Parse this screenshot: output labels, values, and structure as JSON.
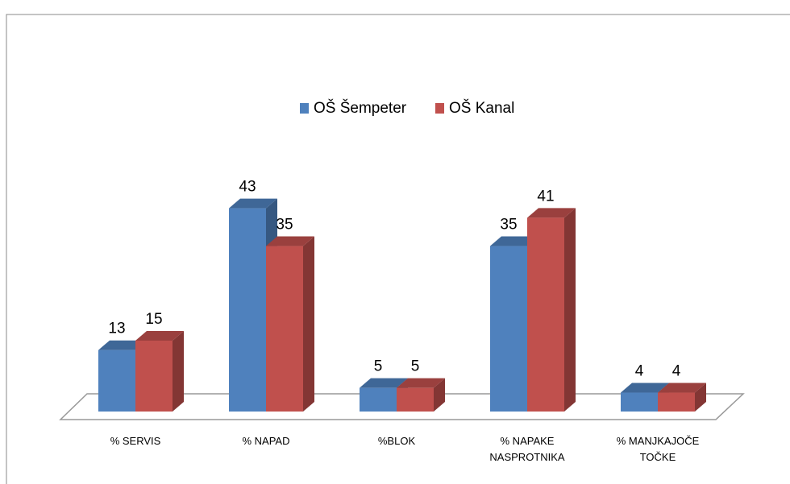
{
  "chart_data": {
    "type": "bar3d",
    "categories": [
      "% SERVIS",
      "% NAPAD",
      "%BLOK",
      "% NAPAKE NASPROTNIKA",
      "% MANJKAJOČE TOČKE"
    ],
    "series": [
      {
        "name": "OŠ Šempeter",
        "color": "#4f81bd",
        "values": [
          13,
          43,
          5,
          35,
          4
        ]
      },
      {
        "name": "OŠ Kanal",
        "color": "#c0504d",
        "values": [
          15,
          35,
          5,
          41,
          4
        ]
      }
    ],
    "legend": "top"
  }
}
